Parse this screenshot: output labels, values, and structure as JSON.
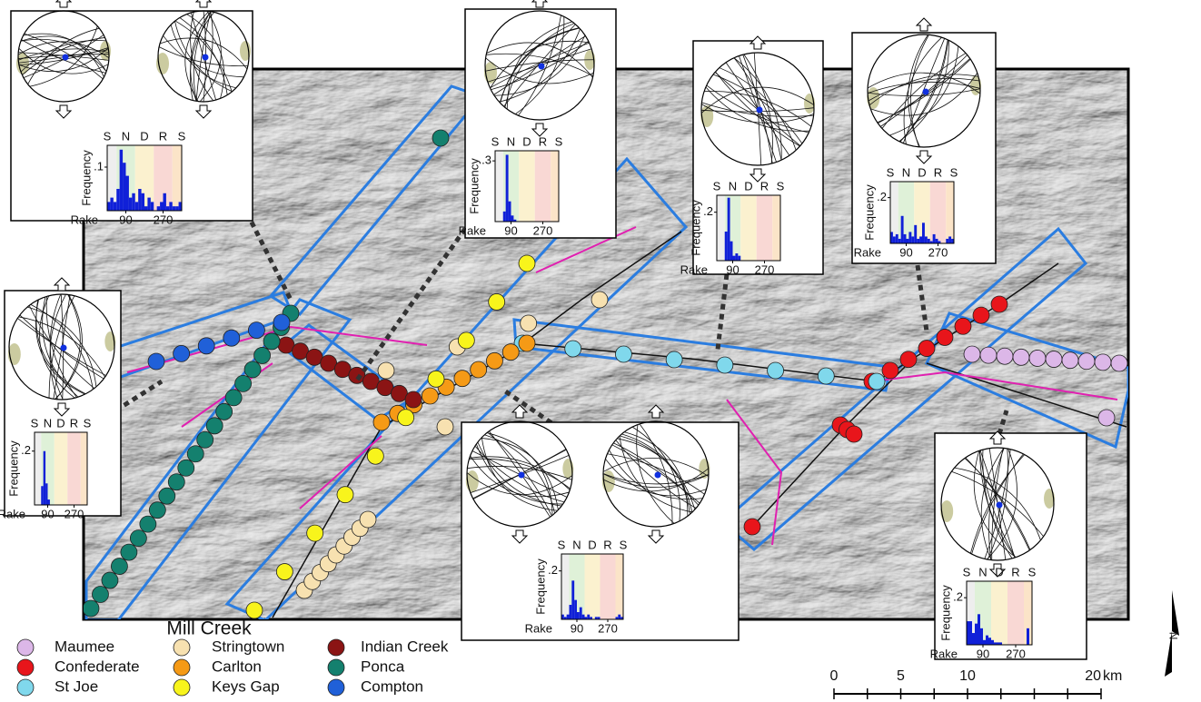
{
  "map": {
    "title": "Mill Creek",
    "legend": [
      {
        "name": "Maumee",
        "color": "#dcb7e8"
      },
      {
        "name": "Confederate",
        "color": "#e8151b"
      },
      {
        "name": "St Joe",
        "color": "#80d8ec"
      },
      {
        "name": "Stringtown",
        "color": "#f7e1b0"
      },
      {
        "name": "Carlton",
        "color": "#f59a16"
      },
      {
        "name": "Keys Gap",
        "color": "#f8f41c"
      },
      {
        "name": "Indian Creek",
        "color": "#8b1414"
      },
      {
        "name": "Ponca",
        "color": "#14806e"
      },
      {
        "name": "Compton",
        "color": "#2060d8"
      }
    ],
    "scale": {
      "ticks": [
        0,
        5,
        10,
        20
      ],
      "unit": "km"
    },
    "north": "N"
  },
  "insets": {
    "zones": [
      "S",
      "N",
      "D",
      "R",
      "S"
    ],
    "frequency_label": "Frequency",
    "rake_label": "Rake",
    "xlim": [
      0,
      360
    ],
    "xticks": [
      90,
      270
    ],
    "bins": [
      0,
      15,
      30,
      45,
      60,
      75,
      90,
      105,
      120,
      135,
      150,
      165,
      180,
      195,
      210,
      225,
      240,
      255,
      270,
      285,
      300,
      315,
      330,
      345,
      360
    ],
    "histograms": [
      {
        "ylim": [
          0,
          0.15
        ],
        "yticks": [
          {
            "value": 0.1,
            "label": ".1"
          }
        ],
        "values": [
          0.02,
          0.03,
          0.02,
          0.05,
          0.14,
          0.11,
          0.08,
          0.03,
          0.04,
          0.02,
          0.05,
          0.04,
          0.01,
          0.03,
          0.02,
          0,
          0.01,
          0.02,
          0.04,
          0.01,
          0.02,
          0.01,
          0.01,
          0.02
        ]
      },
      {
        "ylim": [
          0,
          0.35
        ],
        "yticks": [
          {
            "value": 0.3,
            "label": ".3"
          }
        ],
        "values": [
          0,
          0,
          0,
          0.05,
          0.33,
          0.1,
          0.03,
          0.01,
          0,
          0,
          0,
          0,
          0,
          0,
          0,
          0,
          0,
          0,
          0,
          0,
          0,
          0,
          0,
          0
        ]
      },
      {
        "ylim": [
          0,
          0.27
        ],
        "yticks": [
          {
            "value": 0.2,
            "label": ".2"
          }
        ],
        "values": [
          0,
          0,
          0,
          0.12,
          0.26,
          0.08,
          0.02,
          0.03,
          0.02,
          0,
          0,
          0,
          0,
          0,
          0,
          0,
          0,
          0,
          0,
          0,
          0,
          0,
          0,
          0
        ]
      },
      {
        "ylim": [
          0,
          0.27
        ],
        "yticks": [
          {
            "value": 0.2,
            "label": ".2"
          }
        ],
        "values": [
          0.05,
          0.03,
          0.04,
          0.02,
          0.12,
          0.04,
          0.02,
          0.05,
          0.03,
          0.08,
          0.02,
          0.03,
          0.09,
          0.03,
          0.02,
          0.01,
          0.04,
          0.02,
          0.01,
          0,
          0,
          0.02,
          0.03,
          0.02
        ]
      },
      {
        "ylim": [
          0,
          0.27
        ],
        "yticks": [
          {
            "value": 0.2,
            "label": ".2"
          }
        ],
        "values": [
          0,
          0,
          0,
          0.07,
          0.2,
          0.08,
          0.02,
          0,
          0,
          0,
          0,
          0,
          0,
          0,
          0,
          0,
          0,
          0,
          0,
          0,
          0,
          0,
          0,
          0
        ]
      },
      {
        "ylim": [
          0,
          0.27
        ],
        "yticks": [
          {
            "value": 0.2,
            "label": ".2"
          }
        ],
        "values": [
          0.02,
          0.01,
          0.02,
          0.06,
          0.16,
          0.08,
          0.03,
          0.05,
          0.02,
          0.01,
          0.02,
          0.01,
          0,
          0.01,
          0.01,
          0,
          0,
          0,
          0,
          0,
          0,
          0.01,
          0.02,
          0.01
        ]
      },
      {
        "ylim": [
          0,
          0.27
        ],
        "yticks": [
          {
            "value": 0.2,
            "label": ".2"
          }
        ],
        "values": [
          0.1,
          0.1,
          0.05,
          0.09,
          0.13,
          0.07,
          0.02,
          0.04,
          0.03,
          0.02,
          0.01,
          0.01,
          0.01,
          0,
          0,
          0,
          0,
          0,
          0,
          0,
          0,
          0,
          0.07,
          0
        ]
      }
    ]
  }
}
